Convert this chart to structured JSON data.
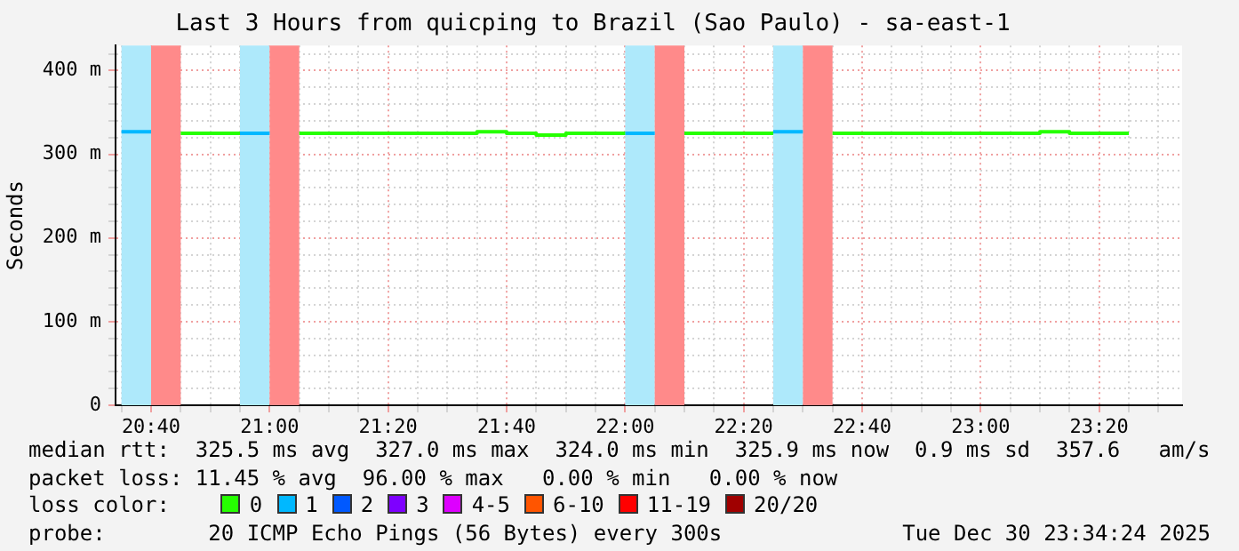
{
  "chart_data": {
    "type": "step",
    "title": "Last 3 Hours from quicping to Brazil (Sao Paulo) - sa-east-1",
    "ylabel": "Seconds",
    "legend_title": "loss color:",
    "legend": "bottom",
    "grid": true,
    "marker": "none",
    "xlim": [
      "2025-12-30T20:34",
      "2025-12-30T23:34"
    ],
    "xticks": [
      {
        "value": "2025-12-30T20:35",
        "label": null
      },
      {
        "value": "2025-12-30T20:40",
        "label": "20:40"
      },
      {
        "value": "2025-12-30T20:45",
        "label": null
      },
      {
        "value": "2025-12-30T20:50",
        "label": null
      },
      {
        "value": "2025-12-30T20:55",
        "label": null
      },
      {
        "value": "2025-12-30T21:00",
        "label": "21:00"
      },
      {
        "value": "2025-12-30T21:05",
        "label": null
      },
      {
        "value": "2025-12-30T21:10",
        "label": null
      },
      {
        "value": "2025-12-30T21:15",
        "label": null
      },
      {
        "value": "2025-12-30T21:20",
        "label": "21:20"
      },
      {
        "value": "2025-12-30T21:25",
        "label": null
      },
      {
        "value": "2025-12-30T21:30",
        "label": null
      },
      {
        "value": "2025-12-30T21:35",
        "label": null
      },
      {
        "value": "2025-12-30T21:40",
        "label": "21:40"
      },
      {
        "value": "2025-12-30T21:45",
        "label": null
      },
      {
        "value": "2025-12-30T21:50",
        "label": null
      },
      {
        "value": "2025-12-30T21:55",
        "label": null
      },
      {
        "value": "2025-12-30T22:00",
        "label": "22:00"
      },
      {
        "value": "2025-12-30T22:05",
        "label": null
      },
      {
        "value": "2025-12-30T22:10",
        "label": null
      },
      {
        "value": "2025-12-30T22:15",
        "label": null
      },
      {
        "value": "2025-12-30T22:20",
        "label": "22:20"
      },
      {
        "value": "2025-12-30T22:25",
        "label": null
      },
      {
        "value": "2025-12-30T22:30",
        "label": null
      },
      {
        "value": "2025-12-30T22:35",
        "label": null
      },
      {
        "value": "2025-12-30T22:40",
        "label": "22:40"
      },
      {
        "value": "2025-12-30T22:45",
        "label": null
      },
      {
        "value": "2025-12-30T22:50",
        "label": null
      },
      {
        "value": "2025-12-30T22:55",
        "label": null
      },
      {
        "value": "2025-12-30T23:00",
        "label": "23:00"
      },
      {
        "value": "2025-12-30T23:05",
        "label": null
      },
      {
        "value": "2025-12-30T23:10",
        "label": null
      },
      {
        "value": "2025-12-30T23:15",
        "label": null
      },
      {
        "value": "2025-12-30T23:20",
        "label": "23:20"
      },
      {
        "value": "2025-12-30T23:25",
        "label": null
      },
      {
        "value": "2025-12-30T23:30",
        "label": null
      }
    ],
    "ylim": [
      0,
      430
    ],
    "yticks": [
      0,
      {
        "value": 20,
        "label": null
      },
      {
        "value": 40,
        "label": null
      },
      {
        "value": 60,
        "label": null
      },
      {
        "value": 80,
        "label": null
      },
      {
        "value": 100,
        "label": "100 m"
      },
      {
        "value": 120,
        "label": null
      },
      {
        "value": 140,
        "label": null
      },
      {
        "value": 160,
        "label": null
      },
      {
        "value": 180,
        "label": null
      },
      {
        "value": 200,
        "label": "200 m"
      },
      {
        "value": 220,
        "label": null
      },
      {
        "value": 240,
        "label": null
      },
      {
        "value": 260,
        "label": null
      },
      {
        "value": 280,
        "label": null
      },
      {
        "value": 300,
        "label": "300 m"
      },
      {
        "value": 320,
        "label": null
      },
      {
        "value": 340,
        "label": null
      },
      {
        "value": 360,
        "label": null
      },
      {
        "value": 380,
        "label": null
      },
      {
        "value": 400,
        "label": "400 m"
      },
      {
        "value": 420,
        "label": null
      }
    ],
    "series": [
      {
        "name": "0",
        "color": "#26ff00",
        "x": [
          "2025-12-30T20:45",
          "2025-12-30T20:55",
          "2025-12-30T21:00",
          "2025-12-30T21:05",
          "2025-12-30T21:35",
          "2025-12-30T21:40",
          "2025-12-30T21:45",
          "2025-12-30T21:50",
          "2025-12-30T22:00",
          "2025-12-30T22:05",
          "2025-12-30T22:10",
          "2025-12-30T22:25",
          "2025-12-30T22:30",
          "2025-12-30T22:35",
          "2025-12-30T23:10",
          "2025-12-30T23:15",
          "2025-12-30T23:25"
        ],
        "values": [
          325,
          325,
          null,
          325,
          327,
          325,
          323,
          325,
          325,
          null,
          325,
          325,
          null,
          325,
          327,
          325,
          325
        ]
      },
      {
        "name": "1",
        "color": "#00b8ff",
        "x": [
          "2025-12-30T20:35",
          "2025-12-30T20:40",
          "2025-12-30T20:45",
          "2025-12-30T20:55",
          "2025-12-30T21:00",
          "2025-12-30T21:05",
          "2025-12-30T22:00",
          "2025-12-30T22:05",
          "2025-12-30T22:10",
          "2025-12-30T22:25",
          "2025-12-30T22:30"
        ],
        "values": [
          327,
          327,
          null,
          325,
          325,
          null,
          325,
          325,
          null,
          327,
          327
        ]
      },
      {
        "name": "2",
        "color": "#0059ff"
      },
      {
        "name": "3",
        "color": "#7e00ff"
      },
      {
        "name": "4-5",
        "color": "#dd00ff"
      },
      {
        "name": "6-10",
        "color": "#ff5500"
      },
      {
        "name": "11-19",
        "color": "#ff0000"
      },
      {
        "name": "20/20",
        "color": "#a00000"
      }
    ],
    "bands": [
      {
        "axis": "x",
        "from": "2025-12-30T20:35",
        "to": "2025-12-30T20:40",
        "color": "#aee9fb"
      },
      {
        "axis": "x",
        "from": "2025-12-30T20:40",
        "to": "2025-12-30T20:45",
        "color": "#ff8a8a"
      },
      {
        "axis": "x",
        "from": "2025-12-30T20:55",
        "to": "2025-12-30T21:00",
        "color": "#aee9fb"
      },
      {
        "axis": "x",
        "from": "2025-12-30T21:00",
        "to": "2025-12-30T21:05",
        "color": "#ff8a8a"
      },
      {
        "axis": "x",
        "from": "2025-12-30T22:00",
        "to": "2025-12-30T22:05",
        "color": "#aee9fb"
      },
      {
        "axis": "x",
        "from": "2025-12-30T22:05",
        "to": "2025-12-30T22:10",
        "color": "#ff8a8a"
      },
      {
        "axis": "x",
        "from": "2025-12-30T22:25",
        "to": "2025-12-30T22:30",
        "color": "#aee9fb"
      },
      {
        "axis": "x",
        "from": "2025-12-30T22:30",
        "to": "2025-12-30T22:35",
        "color": "#ff8a8a"
      }
    ],
    "annotations": [
      "median rtt:  325.5 ms avg  327.0 ms max  324.0 ms min  325.9 ms now  0.9 ms sd  357.6   am/s",
      "packet loss: 11.45 % avg  96.00 % max   0.00 % min   0.00 % now",
      "probe:        20 ICMP Echo Pings (56 Bytes) every 300s",
      "Tue Dec 30 23:34:24 2025"
    ]
  }
}
